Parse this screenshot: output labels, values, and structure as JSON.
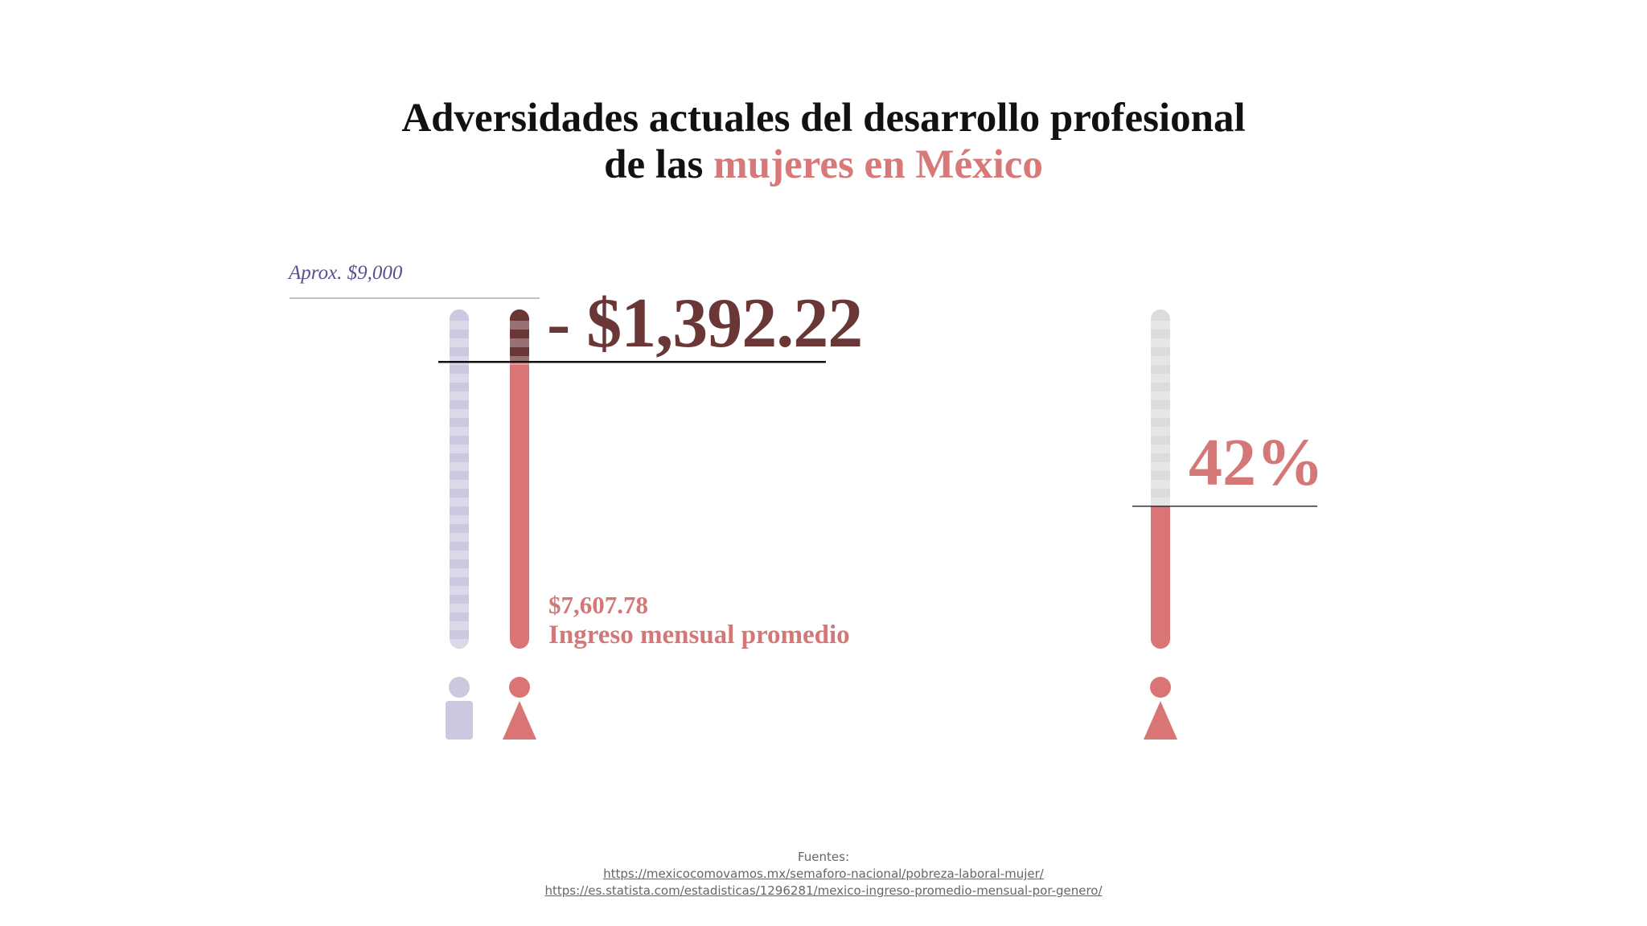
{
  "title": {
    "line1": "Adversidades actuales del desarrollo profesional",
    "line2_prefix": "de las ",
    "line2_accent": "mujeres en México"
  },
  "chart_data": {
    "type": "bar",
    "bars": [
      {
        "label": "Aprox. $9,000",
        "value": 9000,
        "color": "#cbc8e0",
        "icon": "male-person-icon"
      },
      {
        "label": "$7,607.78",
        "value": 7607.78,
        "color": "#d97575",
        "top_color": "#6b3636",
        "icon": "female-person-icon"
      }
    ],
    "difference_label": "- $1,392.22",
    "income_value": "$7,607.78",
    "income_caption": "Ingreso mensual promedio",
    "ylim": [
      0,
      9000
    ],
    "percent_gauge": {
      "label": "42%",
      "fraction": 0.42,
      "fill_color": "#d97575",
      "empty_color": "#dcdcdc",
      "icon": "female-person-icon"
    }
  },
  "colors": {
    "accent": "#d97878",
    "dark": "#6b3636",
    "male": "#cbc8e0",
    "neutral": "#dcdcdc"
  },
  "footer": {
    "label": "Fuentes:",
    "links": [
      "https://mexicocomovamos.mx/semaforo-nacional/pobreza-laboral-mujer/",
      "https://es.statista.com/estadisticas/1296281/mexico-ingreso-promedio-mensual-por-genero/"
    ]
  }
}
